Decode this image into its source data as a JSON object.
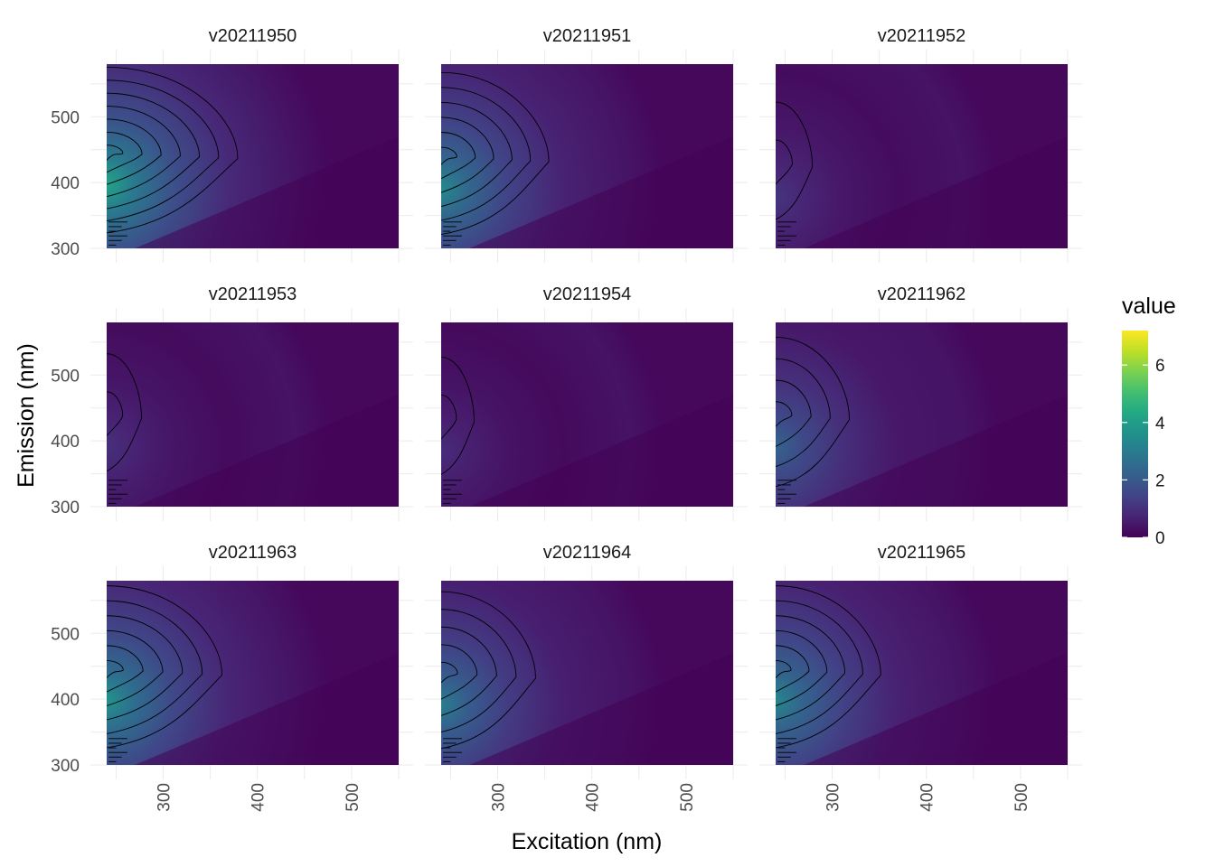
{
  "chart_data": {
    "type": "heatmap",
    "subtype": "faceted contour heatmap (excitation-emission matrix)",
    "xlabel": "Excitation (nm)",
    "ylabel": "Emission (nm)",
    "x_ticks": [
      300,
      400,
      500
    ],
    "y_ticks": [
      300,
      400,
      500
    ],
    "xlim": [
      240,
      550
    ],
    "ylim": [
      300,
      580
    ],
    "grid": true,
    "contour_lines": true,
    "legend": {
      "title": "value",
      "position": "right",
      "ticks": [
        0,
        2,
        4,
        6
      ],
      "range": [
        0,
        7.2
      ],
      "colormap": [
        "#440154",
        "#482475",
        "#414487",
        "#355f8d",
        "#2a788e",
        "#21908d",
        "#22a884",
        "#42be71",
        "#7ad151",
        "#bddf26",
        "#fde725"
      ]
    },
    "panels": [
      {
        "name": "v20211950",
        "peak_value": 4.2,
        "peak_excitation": 245,
        "peak_emission": 445
      },
      {
        "name": "v20211951",
        "peak_value": 3.4,
        "peak_excitation": 245,
        "peak_emission": 440
      },
      {
        "name": "v20211952",
        "peak_value": 1.1,
        "peak_excitation": 245,
        "peak_emission": 430
      },
      {
        "name": "v20211953",
        "peak_value": 1.0,
        "peak_excitation": 245,
        "peak_emission": 440
      },
      {
        "name": "v20211954",
        "peak_value": 0.9,
        "peak_excitation": 245,
        "peak_emission": 435
      },
      {
        "name": "v20211962",
        "peak_value": 2.3,
        "peak_excitation": 245,
        "peak_emission": 440
      },
      {
        "name": "v20211963",
        "peak_value": 3.7,
        "peak_excitation": 245,
        "peak_emission": 445
      },
      {
        "name": "v20211964",
        "peak_value": 3.0,
        "peak_excitation": 245,
        "peak_emission": 440
      },
      {
        "name": "v20211965",
        "peak_value": 3.3,
        "peak_excitation": 245,
        "peak_emission": 445
      }
    ]
  }
}
